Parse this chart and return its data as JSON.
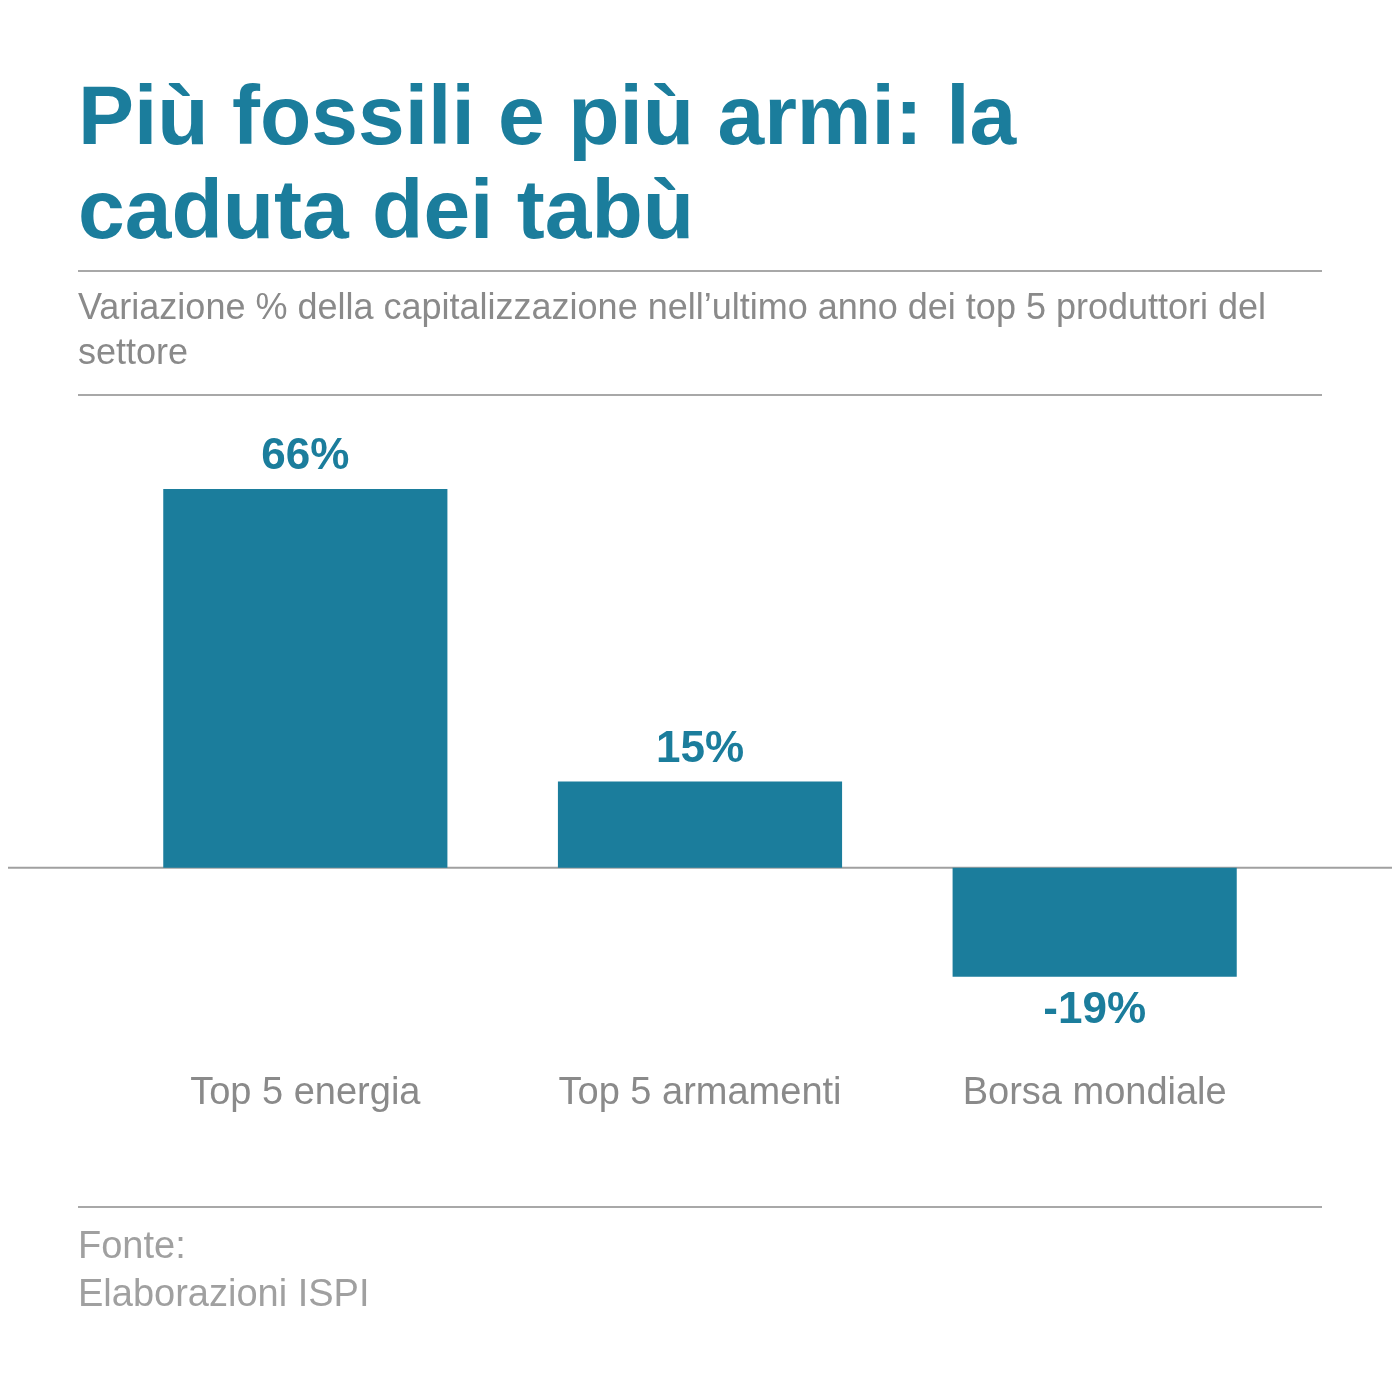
{
  "chart_data": {
    "type": "bar",
    "title": "Più fossili e più armi: la caduta dei tabù",
    "subtitle": "Variazione % della capitalizzazione nell’ultimo anno dei top 5 produttori del settore",
    "categories": [
      "Top 5 energia",
      "Top 5 armamenti",
      "Borsa mondiale"
    ],
    "values": [
      66,
      15,
      -19
    ],
    "value_labels": [
      "66%",
      "15%",
      "-19%"
    ],
    "color": "#1b7d9c",
    "annotations": [
      "Fonte:",
      "Elaborazioni ISPI"
    ]
  }
}
